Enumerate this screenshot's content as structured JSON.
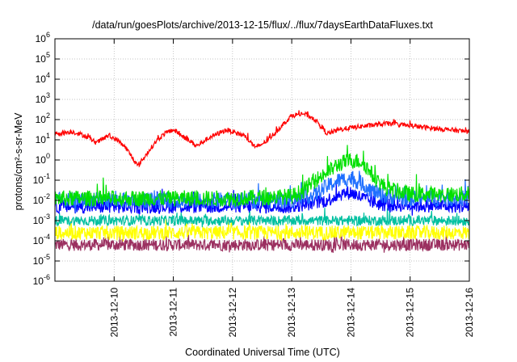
{
  "chart_data": {
    "type": "line",
    "title": "/data/run/goesPlots/archive/2013-12-15/flux/../flux/7daysEarthDataFluxes.txt",
    "xlabel": "Coordinated Universal Time (UTC)",
    "ylabel": "protons/cm²-s-sr-MeV",
    "y_scale": "log",
    "ylim_exp": [
      -6,
      6
    ],
    "y_tick_exponents": [
      -6,
      -5,
      -4,
      -3,
      -2,
      -1,
      0,
      1,
      2,
      3,
      4,
      5,
      6
    ],
    "x_range_days": [
      "2013-12-09",
      "2013-12-16"
    ],
    "x_ticks": [
      "2013-12-10",
      "2013-12-11",
      "2013-12-12",
      "2013-12-13",
      "2013-12-14",
      "2013-12-15",
      "2013-12-16"
    ],
    "grid": true,
    "series": [
      {
        "color": "#ff0000",
        "noise": 0.12,
        "x_days": [
          0,
          0.3,
          0.5,
          0.7,
          0.9,
          1.05,
          1.2,
          1.4,
          1.7,
          1.85,
          2.0,
          2.2,
          2.4,
          2.6,
          2.9,
          3.2,
          3.4,
          3.6,
          3.8,
          4.0,
          4.2,
          4.4,
          4.6,
          4.8,
          5.0,
          5.3,
          5.6,
          6.0,
          6.3,
          7.0
        ],
        "y_log": [
          1.3,
          1.4,
          1.2,
          0.85,
          1.2,
          1.0,
          0.6,
          -0.3,
          0.9,
          1.3,
          1.5,
          1.1,
          0.7,
          1.1,
          1.5,
          1.2,
          0.6,
          1.0,
          1.6,
          2.2,
          2.3,
          2.0,
          1.3,
          1.5,
          1.6,
          1.7,
          1.8,
          1.7,
          1.6,
          1.4
        ]
      },
      {
        "color": "#00e000",
        "noise": 0.4,
        "x_days": [
          0,
          3.0,
          4.0,
          4.2,
          4.4,
          4.6,
          4.8,
          5.0,
          5.2,
          5.3,
          5.4,
          5.6,
          6.0,
          7.0
        ],
        "y_log": [
          -1.9,
          -1.9,
          -1.8,
          -1.5,
          -1.0,
          -0.6,
          -0.2,
          0.0,
          -0.1,
          -0.5,
          -0.9,
          -1.4,
          -1.7,
          -1.7
        ]
      },
      {
        "color": "#2070ff",
        "noise": 0.4,
        "x_days": [
          0,
          3.0,
          4.0,
          4.4,
          4.6,
          4.8,
          5.0,
          5.2,
          5.4,
          5.6,
          6.0,
          7.0
        ],
        "y_log": [
          -2.0,
          -2.0,
          -2.0,
          -1.7,
          -1.3,
          -1.0,
          -0.9,
          -1.2,
          -1.6,
          -1.8,
          -1.9,
          -1.9
        ]
      },
      {
        "color": "#0000ff",
        "noise": 0.35,
        "x_days": [
          0,
          4.0,
          4.6,
          4.8,
          5.0,
          5.2,
          5.5,
          7.0
        ],
        "y_log": [
          -2.3,
          -2.3,
          -2.0,
          -1.7,
          -1.6,
          -1.9,
          -2.2,
          -2.3
        ]
      },
      {
        "color": "#00c0a0",
        "noise": 0.25,
        "x_days": [
          0,
          7.0
        ],
        "y_log": [
          -3.0,
          -3.0
        ]
      },
      {
        "color": "#ffff00",
        "noise": 0.35,
        "x_days": [
          0,
          7.0
        ],
        "y_log": [
          -3.6,
          -3.6
        ]
      },
      {
        "color": "#9b3060",
        "noise": 0.3,
        "x_days": [
          0,
          7.0
        ],
        "y_log": [
          -4.2,
          -4.2
        ]
      }
    ]
  }
}
